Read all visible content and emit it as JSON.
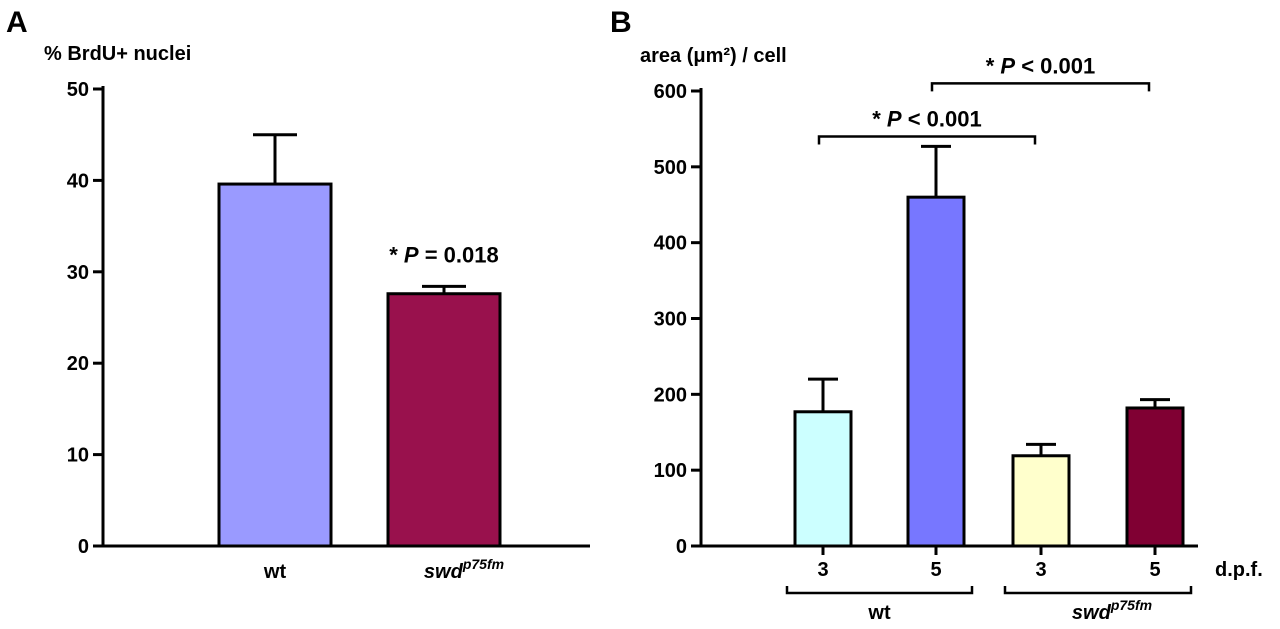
{
  "chart_data": [
    {
      "panel": "A",
      "type": "bar",
      "ylabel": "% BrdU+ nuclei",
      "ylim": [
        0,
        50
      ],
      "yticks": [
        0,
        10,
        20,
        30,
        40,
        50
      ],
      "grid": false,
      "categories": [
        {
          "label": "wt",
          "sup": ""
        },
        {
          "label": "swd",
          "sup": "p75fm"
        }
      ],
      "values": [
        39.6,
        27.6
      ],
      "errors": [
        5.4,
        0.8
      ],
      "colors": [
        "#9a9aff",
        "#99114d"
      ],
      "annotation": {
        "prefix": "* ",
        "stat": "P",
        "text": " = 0.018"
      }
    },
    {
      "panel": "B",
      "type": "bar",
      "ylabel": "area (μm²) / cell",
      "ylim": [
        0,
        600
      ],
      "yticks": [
        0,
        100,
        200,
        300,
        400,
        500,
        600
      ],
      "grid": false,
      "categories": [
        "3",
        "5",
        "3",
        "5"
      ],
      "x_unit_label": "d.p.f.",
      "groups": [
        {
          "label": "wt",
          "sup": ""
        },
        {
          "label": "swd",
          "sup": "p75fm"
        }
      ],
      "values": [
        177,
        460,
        119,
        182
      ],
      "errors": [
        43,
        67,
        15,
        11
      ],
      "colors": [
        "#ccffff",
        "#7777ff",
        "#ffffcc",
        "#800033"
      ],
      "comparisons": [
        {
          "prefix": "* ",
          "stat": "P",
          "text": " < 0.001"
        },
        {
          "prefix": "* ",
          "stat": "P",
          "text": " < 0.001"
        }
      ]
    }
  ]
}
